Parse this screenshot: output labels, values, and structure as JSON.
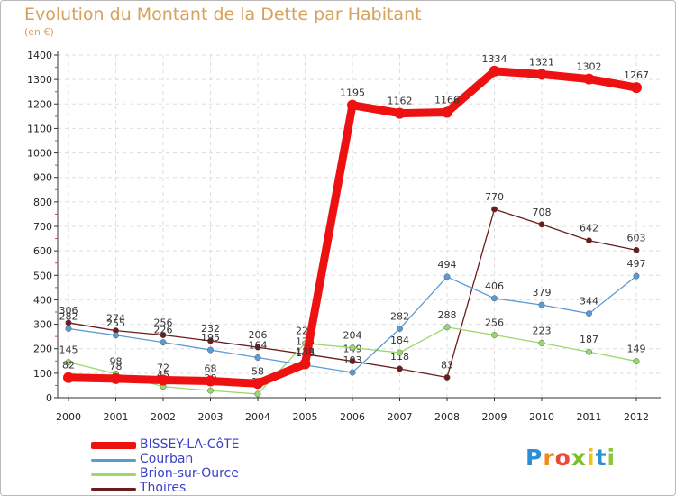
{
  "chart_data": {
    "type": "line",
    "title": "Evolution du Montant de la Dette par Habitant",
    "subtitle": "(en €)",
    "x": [
      "2000",
      "2001",
      "2002",
      "2003",
      "2004",
      "2005",
      "2006",
      "2007",
      "2008",
      "2009",
      "2010",
      "2011",
      "2012"
    ],
    "ylim": [
      0,
      1400
    ],
    "yticks": [
      0,
      100,
      200,
      300,
      400,
      500,
      600,
      700,
      800,
      900,
      1000,
      1100,
      1200,
      1300,
      1400
    ],
    "series": [
      {
        "name": "Thoires",
        "color": "#6b1c1c",
        "values": [
          306,
          274,
          256,
          232,
          206,
          178,
          149,
          118,
          83,
          770,
          708,
          642,
          603
        ]
      },
      {
        "name": "Brion-sur-Ource",
        "color": "#99d96b",
        "values": [
          145,
          98,
          45,
          29,
          15,
          222,
          204,
          184,
          288,
          256,
          223,
          187,
          149
        ]
      },
      {
        "name": "Courban",
        "color": "#5b9bd5",
        "values": [
          282,
          255,
          226,
          195,
          164,
          133,
          103,
          282,
          494,
          406,
          379,
          344,
          497
        ]
      },
      {
        "name": "BISSEY-LA-CôTE",
        "color": "#ee1111",
        "values": [
          82,
          78,
          72,
          68,
          58,
          138,
          1195,
          1162,
          1166,
          1334,
          1321,
          1302,
          1267
        ]
      }
    ],
    "legend": [
      "BISSEY-LA-CôTE",
      "Courban",
      "Brion-sur-Ource",
      "Thoires"
    ]
  },
  "logo": {
    "letters": [
      "P",
      "r",
      "o",
      "x",
      "i",
      "t",
      "i"
    ],
    "colors": [
      "#2b8fd6",
      "#f08a1d",
      "#e94b35",
      "#7bbf2a",
      "#f2c316",
      "#2b8fd6",
      "#8cc63f"
    ]
  }
}
